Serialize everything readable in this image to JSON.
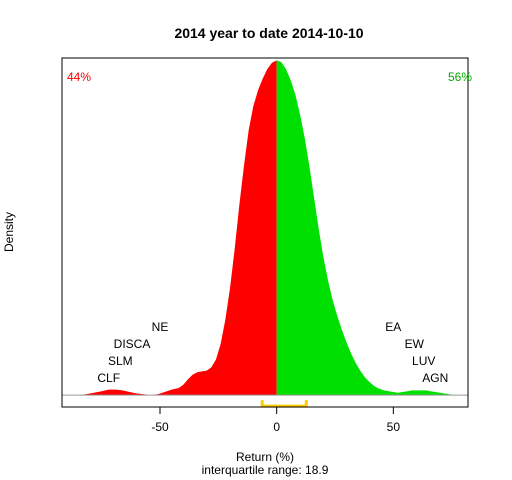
{
  "chart_data": {
    "type": "area",
    "title": "2014  year to date 2014-10-10",
    "xlabel": "Return (%)",
    "subtitle": "interquartile range: 18.9",
    "ylabel": "Density",
    "xlim": [
      -92,
      82
    ],
    "ylim": [
      -0.0015,
      0.0426
    ],
    "x_ticks": [
      -50,
      0,
      50
    ],
    "x_tick_labels": [
      "-50",
      "0",
      "50"
    ],
    "split_at": 0,
    "pct_negative": "44%",
    "pct_positive": "56%",
    "colors": {
      "negative": "#ff0000",
      "positive": "#00e000",
      "iqr": "#ffcc00",
      "frame": "#000000",
      "baseline": "#999999"
    },
    "density": {
      "x": [
        -84,
        -80,
        -75,
        -72,
        -69,
        -66,
        -63,
        -60,
        -57,
        -54,
        -51,
        -48,
        -45,
        -42,
        -40,
        -38,
        -36,
        -34,
        -32,
        -30,
        -28,
        -26,
        -24,
        -22,
        -20,
        -18,
        -16,
        -14,
        -12,
        -10,
        -8,
        -6,
        -4,
        -2,
        0,
        2,
        4,
        6,
        8,
        10,
        12,
        14,
        16,
        18,
        20,
        22,
        24,
        26,
        28,
        30,
        32,
        34,
        36,
        38,
        40,
        42,
        44,
        46,
        48,
        50,
        52,
        54,
        56,
        58,
        60,
        62,
        64,
        66,
        68,
        70,
        72,
        74,
        76
      ],
      "y": [
        0.0,
        0.0002,
        0.0005,
        0.0007,
        0.0007,
        0.0006,
        0.0004,
        0.0002,
        0.0001,
        0.0,
        0.0001,
        0.0004,
        0.0007,
        0.0009,
        0.0013,
        0.002,
        0.0026,
        0.0029,
        0.003,
        0.0031,
        0.0035,
        0.0045,
        0.0065,
        0.0095,
        0.0135,
        0.0185,
        0.024,
        0.029,
        0.0335,
        0.0365,
        0.0385,
        0.04,
        0.0412,
        0.042,
        0.0423,
        0.0421,
        0.0412,
        0.0398,
        0.038,
        0.0355,
        0.0325,
        0.029,
        0.025,
        0.021,
        0.0175,
        0.0145,
        0.012,
        0.01,
        0.0082,
        0.0066,
        0.0052,
        0.004,
        0.003,
        0.0022,
        0.0016,
        0.0011,
        0.0008,
        0.0006,
        0.0005,
        0.0004,
        0.0003,
        0.0004,
        0.0005,
        0.0006,
        0.0006,
        0.0006,
        0.0006,
        0.0005,
        0.0004,
        0.0003,
        0.0002,
        0.0001,
        0.0
      ]
    },
    "iqr": {
      "low": -6.2,
      "high": 12.7
    },
    "annotations_left": [
      {
        "text": "NE",
        "x": -50
      },
      {
        "text": "DISCA",
        "x": -62
      },
      {
        "text": "SLM",
        "x": -67
      },
      {
        "text": "CLF",
        "x": -72
      }
    ],
    "annotations_right": [
      {
        "text": "EA",
        "x": 50
      },
      {
        "text": "EW",
        "x": 59
      },
      {
        "text": "LUV",
        "x": 63
      },
      {
        "text": "AGN",
        "x": 68
      }
    ]
  }
}
